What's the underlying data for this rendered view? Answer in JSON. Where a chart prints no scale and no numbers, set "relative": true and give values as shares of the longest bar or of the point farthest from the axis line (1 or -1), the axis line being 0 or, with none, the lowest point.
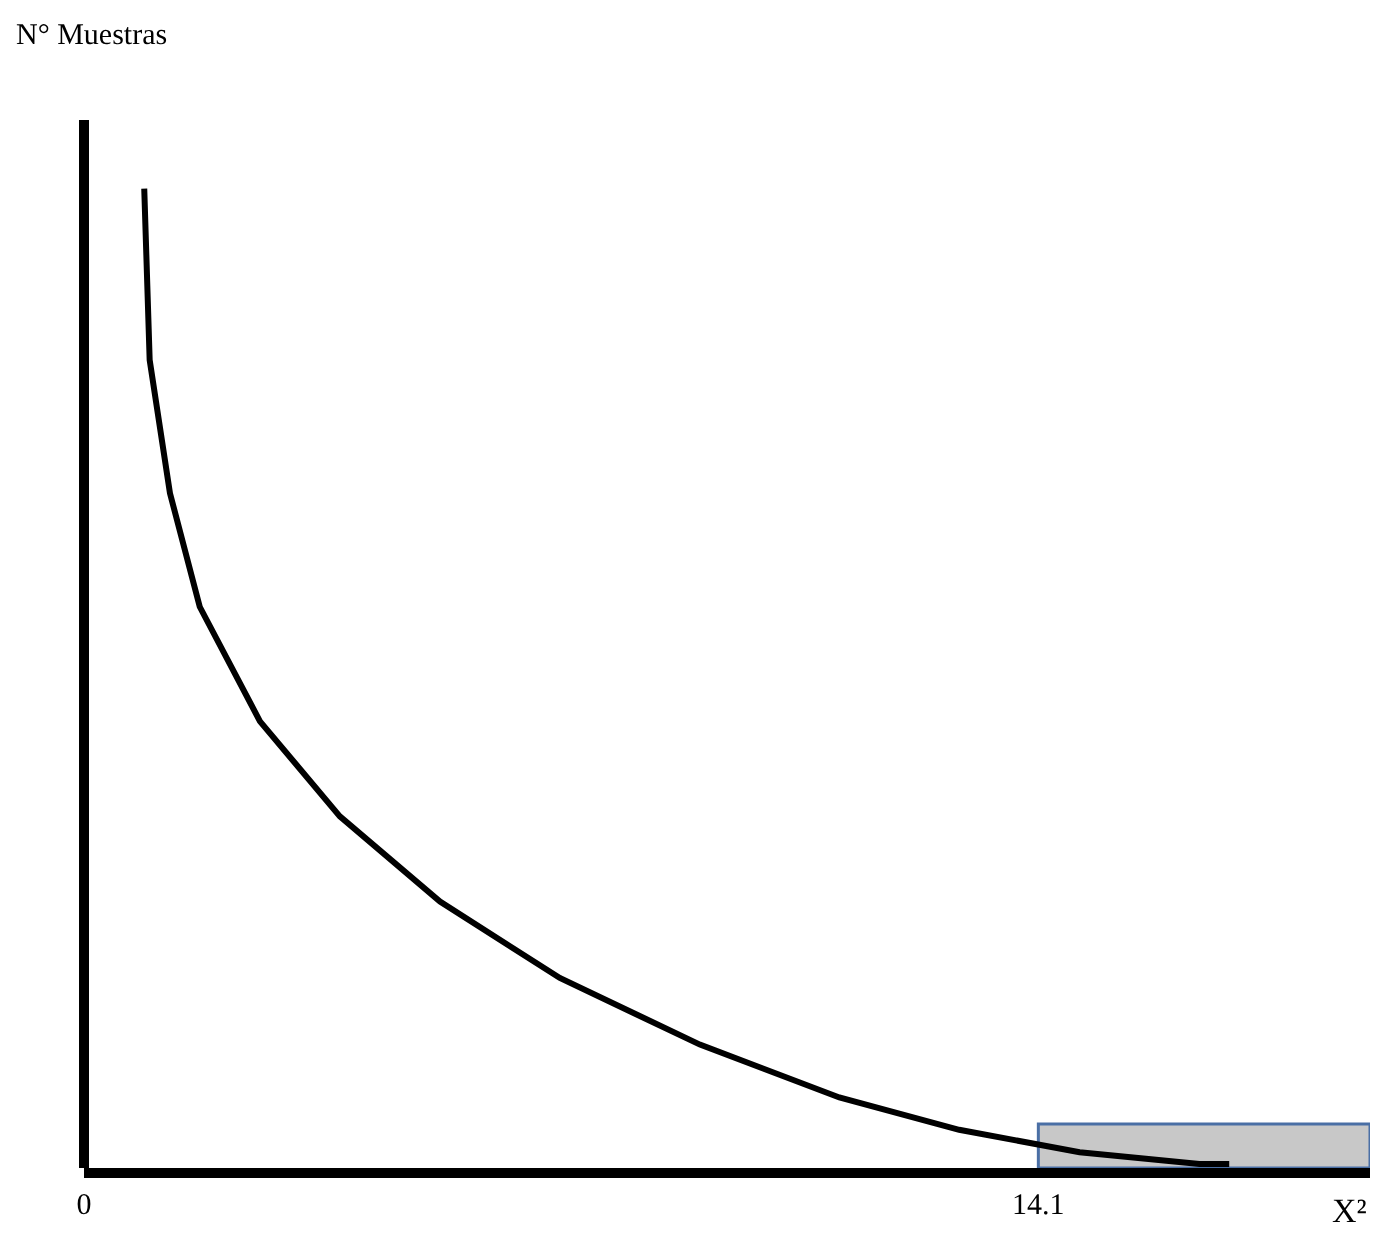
{
  "chart_data": {
    "type": "line",
    "relative": true,
    "ylabel": "N° Muestras",
    "xlabel": "X²",
    "xlim": [
      0,
      19
    ],
    "xticks": [
      0,
      14.1
    ],
    "x": [
      0.89,
      0.97,
      1.27,
      1.71,
      2.6,
      3.78,
      5.26,
      7.03,
      9.1,
      11.16,
      12.93,
      14.71,
      16.48,
      16.92
    ],
    "series": [
      {
        "color": "#000000",
        "values": [
          1,
          0.825,
          0.689,
          0.573,
          0.456,
          0.359,
          0.272,
          0.194,
          0.126,
          0.072,
          0.039,
          0.016,
          0.004,
          0.004
        ]
      }
    ],
    "bands": [
      {
        "axis": "x",
        "from": 14.1,
        "to": 19,
        "color": "#c8c8c8"
      }
    ],
    "grid": false,
    "marker": "none",
    "line_style": "solid"
  }
}
